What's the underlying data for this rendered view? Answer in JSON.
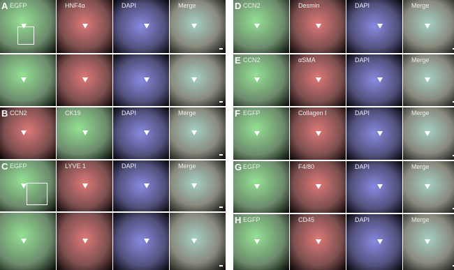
{
  "panels": [
    {
      "letter": "A",
      "labels": [
        "EGFP",
        "HNF4α",
        "DAPI",
        "Merge"
      ]
    },
    {
      "letter": "B",
      "labels": [
        "CCN2",
        "CK19",
        "DAPI",
        "Merge"
      ]
    },
    {
      "letter": "C",
      "labels": [
        "EGFP",
        "LYVE 1",
        "DAPI",
        "Merge"
      ]
    },
    {
      "letter": "D",
      "labels": [
        "CCN2",
        "Desmin",
        "DAPI",
        "Merge"
      ]
    },
    {
      "letter": "E",
      "labels": [
        "CCN2",
        "αSMA",
        "DAPI",
        "Merge"
      ]
    },
    {
      "letter": "F",
      "labels": [
        "EGFP",
        "Collagen I",
        "DAPI",
        "Merge"
      ]
    },
    {
      "letter": "G",
      "labels": [
        "EGFP",
        "F4/80",
        "DAPI",
        "Merge"
      ]
    },
    {
      "letter": "H",
      "labels": [
        "EGFP",
        "CD45",
        "DAPI",
        "Merge"
      ]
    }
  ]
}
